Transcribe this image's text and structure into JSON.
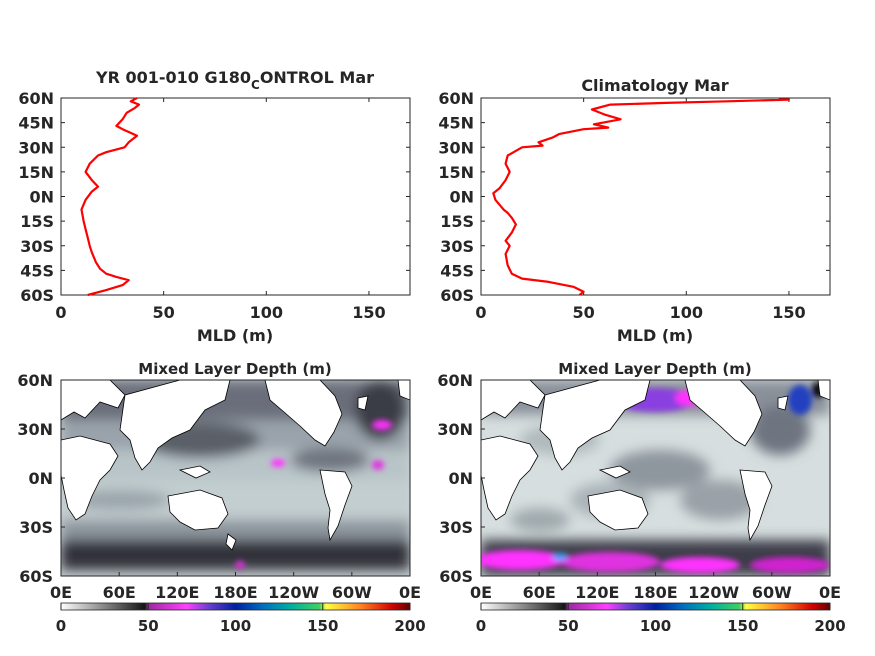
{
  "chart_data": [
    {
      "type": "line",
      "title": "YR 001-010 G180_CONTROL Mar",
      "title_parts": {
        "before": "YR 001-010 G180",
        "sub": "C",
        "after": "ONTROL Mar"
      },
      "xlabel": "MLD (m)",
      "ylabel": "",
      "xlim": [
        0,
        170
      ],
      "ylim": [
        -60,
        60
      ],
      "xticks": [
        0,
        50,
        100,
        150
      ],
      "yticks": [
        -60,
        -45,
        -30,
        -15,
        0,
        15,
        30,
        45,
        60
      ],
      "ytick_labels": [
        "60S",
        "45S",
        "30S",
        "15S",
        "0N",
        "15N",
        "30N",
        "45N",
        "60N"
      ],
      "line_color": "#ff0000",
      "series": [
        {
          "x": [
            13,
            22,
            30,
            33,
            27,
            22,
            19,
            17,
            15,
            14,
            13,
            12,
            11,
            10,
            12,
            15,
            18,
            15,
            12,
            14,
            18,
            22,
            28,
            31,
            33,
            37,
            30,
            27,
            30,
            32,
            36,
            38,
            34,
            37
          ],
          "y": [
            -60,
            -57,
            -54,
            -51,
            -49,
            -47,
            -44,
            -40,
            -34,
            -30,
            -25,
            -20,
            -15,
            -8,
            -2,
            3,
            6,
            10,
            15,
            20,
            25,
            27,
            29,
            30,
            33,
            37,
            41,
            43,
            47,
            51,
            54,
            56,
            58,
            60
          ]
        }
      ]
    },
    {
      "type": "line",
      "title": "Climatology Mar",
      "xlabel": "MLD (m)",
      "ylabel": "",
      "xlim": [
        0,
        170
      ],
      "ylim": [
        -60,
        60
      ],
      "xticks": [
        0,
        50,
        100,
        150
      ],
      "yticks": [
        -60,
        -45,
        -30,
        -15,
        0,
        15,
        30,
        45,
        60
      ],
      "ytick_labels": [
        "60S",
        "45S",
        "30S",
        "15S",
        "0N",
        "15N",
        "30N",
        "45N",
        "60N"
      ],
      "line_color": "#ff0000",
      "series": [
        {
          "x": [
            48,
            50,
            45,
            33,
            20,
            15,
            13,
            12,
            14,
            12,
            15,
            17,
            15,
            13,
            11,
            9,
            7,
            6,
            9,
            12,
            14,
            12,
            13,
            20,
            30,
            28,
            35,
            38,
            50,
            62,
            55,
            68,
            60,
            54,
            63,
            90,
            120,
            150,
            145
          ],
          "y": [
            -60,
            -58,
            -55,
            -52,
            -50,
            -47,
            -42,
            -35,
            -30,
            -27,
            -22,
            -17,
            -13,
            -10,
            -8,
            -5,
            -2,
            2,
            5,
            10,
            15,
            20,
            25,
            30,
            31,
            33,
            36,
            38,
            41,
            42,
            44,
            47,
            50,
            53,
            56,
            57,
            58,
            59,
            59
          ]
        }
      ]
    },
    {
      "type": "heatmap",
      "title": "Mixed Layer Depth (m)",
      "xtick_labels": [
        "0E",
        "60E",
        "120E",
        "180E",
        "120W",
        "60W",
        "0E"
      ],
      "ytick_labels": [
        "60S",
        "30S",
        "0N",
        "30N",
        "60N"
      ],
      "lat_range": [
        -60,
        60
      ],
      "colorbar": {
        "ticks": [
          "0",
          "50",
          "100",
          "150",
          "200"
        ],
        "range": [
          0,
          200
        ]
      }
    },
    {
      "type": "heatmap",
      "title": "Mixed Layer Depth (m)",
      "xtick_labels": [
        "0E",
        "60E",
        "120E",
        "180E",
        "120W",
        "60W",
        "0E"
      ],
      "ytick_labels": [
        "60S",
        "30S",
        "0N",
        "30N",
        "60N"
      ],
      "lat_range": [
        -60,
        60
      ],
      "colorbar": {
        "ticks": [
          "0",
          "50",
          "100",
          "150",
          "200"
        ],
        "range": [
          0,
          200
        ]
      }
    }
  ]
}
